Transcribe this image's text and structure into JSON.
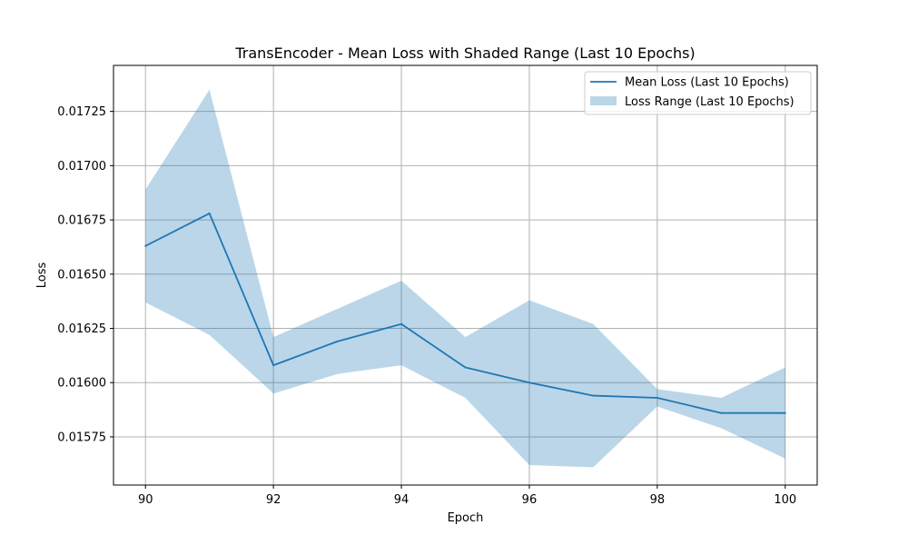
{
  "chart_data": {
    "type": "line",
    "title": "TransEncoder - Mean Loss with Shaded Range (Last 10 Epochs)",
    "xlabel": "Epoch",
    "ylabel": "Loss",
    "x": [
      90,
      91,
      92,
      93,
      94,
      95,
      96,
      97,
      98,
      99,
      100
    ],
    "series": [
      {
        "name": "Mean Loss (Last 10 Epochs)",
        "type": "line",
        "color": "#1f77b4",
        "values": [
          0.01663,
          0.01678,
          0.01608,
          0.01619,
          0.01627,
          0.01607,
          0.016,
          0.01594,
          0.01593,
          0.01586,
          0.01586
        ]
      },
      {
        "name": "Loss Range (Last 10 Epochs)",
        "type": "area-range",
        "color": "#1f77b4",
        "lower": [
          0.01637,
          0.01622,
          0.01595,
          0.01604,
          0.01608,
          0.01593,
          0.01562,
          0.01561,
          0.01589,
          0.01579,
          0.01565
        ],
        "upper": [
          0.01689,
          0.01735,
          0.01621,
          0.01634,
          0.01647,
          0.01621,
          0.01638,
          0.01627,
          0.01597,
          0.01593,
          0.01607
        ]
      }
    ],
    "xlim": [
      89.5,
      100.5
    ],
    "ylim": [
      0.015528,
      0.017462
    ],
    "xticks": [
      90,
      92,
      94,
      96,
      98,
      100
    ],
    "xtick_labels": [
      "90",
      "92",
      "94",
      "96",
      "98",
      "100"
    ],
    "yticks": [
      0.01575,
      0.016,
      0.01625,
      0.0165,
      0.01675,
      0.017,
      0.01725
    ],
    "ytick_labels": [
      "0.01575",
      "0.01600",
      "0.01625",
      "0.01650",
      "0.01675",
      "0.01700",
      "0.01725"
    ],
    "grid": true,
    "legend_position": "top-right"
  }
}
